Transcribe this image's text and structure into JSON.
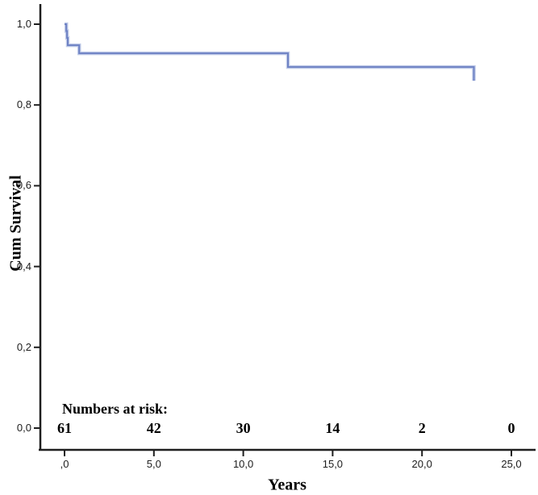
{
  "figure": {
    "background": "#ffffff",
    "axis_color": "#1f1f1f",
    "curve_color": "#6e82c4",
    "curve_halo_color": "#c0cbe8",
    "text_color": "#000000"
  },
  "chart_data": {
    "type": "line",
    "subtype": "kaplan-meier-step",
    "title": "",
    "xlabel": "Years",
    "ylabel": "Cum Survival",
    "grid": false,
    "legend": null,
    "xlim": [
      0,
      25
    ],
    "ylim": [
      0.0,
      1.0
    ],
    "x_ticks": [
      ",0",
      "5,0",
      "10,0",
      "15,0",
      "20,0",
      "25,0"
    ],
    "x_tick_values": [
      0,
      5,
      10,
      15,
      20,
      25
    ],
    "y_ticks": [
      "0,0",
      "0,2",
      "0,4",
      "0,6",
      "0,8",
      "1,0"
    ],
    "y_tick_values": [
      0.0,
      0.2,
      0.4,
      0.6,
      0.8,
      1.0
    ],
    "series": [
      {
        "name": "Cum Survival",
        "steps": [
          {
            "t": 0.0,
            "s": 1.0
          },
          {
            "t": 0.1,
            "s": 0.983
          },
          {
            "t": 0.14,
            "s": 0.966
          },
          {
            "t": 0.18,
            "s": 0.948
          },
          {
            "t": 0.82,
            "s": 0.928
          },
          {
            "t": 12.5,
            "s": 0.894
          },
          {
            "t": 22.9,
            "s": 0.86
          }
        ]
      }
    ],
    "numbers_at_risk": {
      "label": "Numbers at risk:",
      "times": [
        0,
        5,
        10,
        15,
        20,
        25
      ],
      "counts": [
        "61",
        "42",
        "30",
        "14",
        "2",
        "0"
      ]
    }
  }
}
